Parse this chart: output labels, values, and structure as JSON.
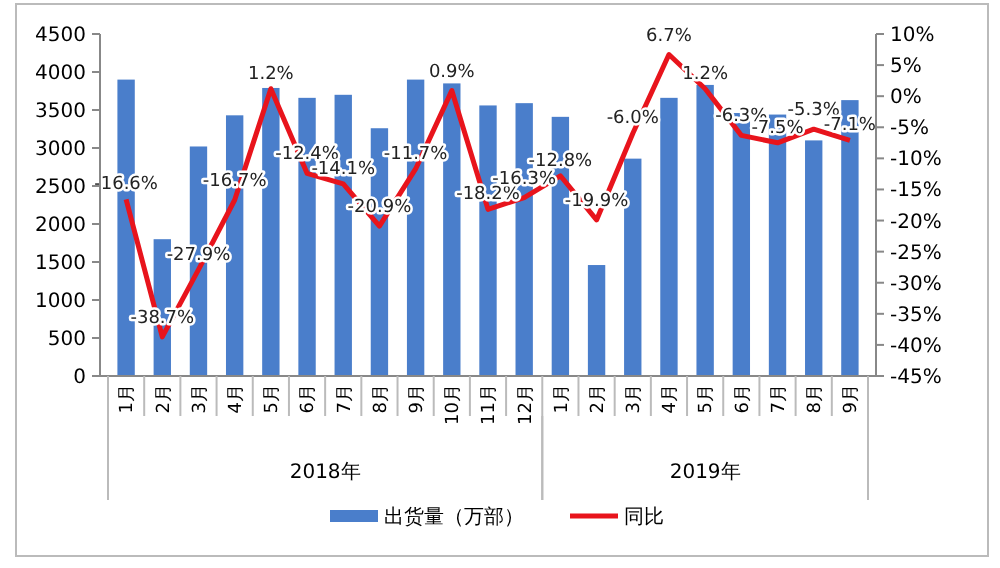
{
  "chart_data": {
    "type": "bar",
    "categories": [
      "1月",
      "2月",
      "3月",
      "4月",
      "5月",
      "6月",
      "7月",
      "8月",
      "9月",
      "10月",
      "11月",
      "12月",
      "1月",
      "2月",
      "3月",
      "4月",
      "5月",
      "6月",
      "7月",
      "8月",
      "9月"
    ],
    "series": [
      {
        "name": "出货量（万部）",
        "color": "#4a7ecb",
        "values": [
          3900,
          1800,
          3020,
          3430,
          3790,
          3660,
          3700,
          3260,
          3900,
          3850,
          3560,
          3590,
          3410,
          1460,
          2860,
          3660,
          3830,
          3460,
          3440,
          3100,
          3630
        ]
      },
      {
        "name": "同比",
        "type": "line",
        "axis": "y2",
        "color": "#e8141c",
        "values": [
          -16.6,
          -38.7,
          -27.9,
          -16.7,
          1.2,
          -12.4,
          -14.1,
          -20.9,
          -11.7,
          0.9,
          -18.2,
          -16.3,
          -12.8,
          -19.9,
          -6.0,
          6.7,
          1.2,
          -6.3,
          -7.5,
          -5.3,
          -7.1
        ],
        "value_labels": [
          "-16.6%",
          "-38.7%",
          "-27.9%",
          "-16.7%",
          "1.2%",
          "-12.4%",
          "-14.1%",
          "-20.9%",
          "-11.7%",
          "0.9%",
          "-18.2%",
          "-16.3%",
          "-12.8%",
          "-19.9%",
          "-6.0%",
          "6.7%",
          "1.2%",
          "-6.3%",
          "-7.5%",
          "-5.3%",
          "-7.1%"
        ]
      }
    ],
    "ylim": [
      0,
      4500
    ],
    "yticks": [
      0,
      500,
      1000,
      1500,
      2000,
      2500,
      3000,
      3500,
      4000,
      4500
    ],
    "y2lim": [
      -45,
      10
    ],
    "y2ticks": [
      {
        "value": -45,
        "label": "-45%"
      },
      {
        "value": -40,
        "label": "-40%"
      },
      {
        "value": -35,
        "label": "-35%"
      },
      {
        "value": -30,
        "label": "-30%"
      },
      {
        "value": -25,
        "label": "-25%"
      },
      {
        "value": -20,
        "label": "-20%"
      },
      {
        "value": -15,
        "label": "-15%"
      },
      {
        "value": -10,
        "label": "-10%"
      },
      {
        "value": -5,
        "label": "-5%"
      },
      {
        "value": 0,
        "label": "0%"
      },
      {
        "value": 5,
        "label": "5%"
      },
      {
        "value": 10,
        "label": "10%"
      }
    ],
    "annotations": [
      "2018年",
      "2019年"
    ],
    "legend": "bottom",
    "grid": false
  }
}
